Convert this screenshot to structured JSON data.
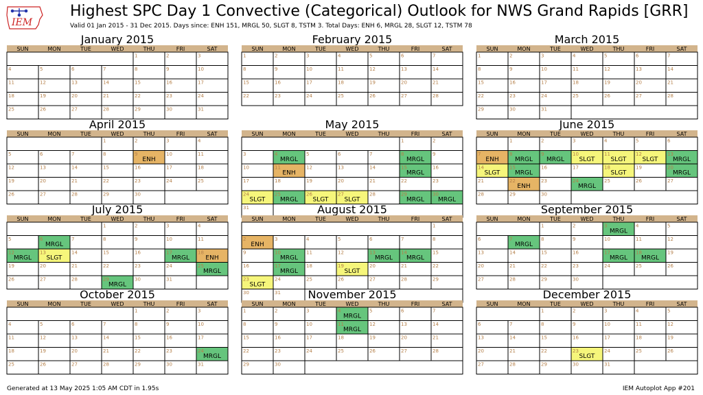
{
  "header": {
    "title": "Highest SPC Day 1 Convective (Categorical) Outlook for NWS Grand Rapids [GRR]",
    "subtitle": "Valid 01 Jan 2015 - 31 Dec 2015. Days since: ENH 151, MRGL 50, SLGT 8, TSTM 3. Total Days: ENH 6, MRGL 28, SLGT 12, TSTM 78",
    "logo_text": "IEM"
  },
  "footer": {
    "generated": "Generated at 13 May 2025 1:05 AM CDT in 1.95s",
    "app": "IEM Autoplot App #201"
  },
  "colors": {
    "header": "#d2b48c",
    "MRGL": "#66c57d",
    "SLGT": "#f6f67b",
    "ENH": "#e6b465",
    "day_number": "#b5804a",
    "logo": "#cc2222"
  },
  "chart_data": {
    "type": "table",
    "year": 2015,
    "weekday_labels": [
      "SUN",
      "MON",
      "TUE",
      "WED",
      "THU",
      "FRI",
      "SAT"
    ],
    "months": [
      {
        "name": "January 2015",
        "first_weekday": 4,
        "days": 31,
        "events": {}
      },
      {
        "name": "February 2015",
        "first_weekday": 0,
        "days": 28,
        "events": {}
      },
      {
        "name": "March 2015",
        "first_weekday": 0,
        "days": 31,
        "events": {}
      },
      {
        "name": "April 2015",
        "first_weekday": 3,
        "days": 30,
        "events": {
          "9": "ENH"
        }
      },
      {
        "name": "May 2015",
        "first_weekday": 5,
        "days": 31,
        "events": {
          "4": "MRGL",
          "8": "MRGL",
          "11": "ENH",
          "15": "MRGL",
          "24": "SLGT",
          "25": "MRGL",
          "26": "SLGT",
          "27": "SLGT",
          "29": "MRGL",
          "30": "MRGL"
        }
      },
      {
        "name": "June 2015",
        "first_weekday": 1,
        "days": 30,
        "events": {
          "7": "ENH",
          "8": "MRGL",
          "9": "MRGL",
          "10": "SLGT",
          "11": "SLGT",
          "12": "SLGT",
          "13": "MRGL",
          "14": "SLGT",
          "15": "MRGL",
          "18": "SLGT",
          "20": "MRGL",
          "22": "ENH",
          "24": "MRGL"
        }
      },
      {
        "name": "July 2015",
        "first_weekday": 3,
        "days": 31,
        "events": {
          "6": "MRGL",
          "12": "MRGL",
          "13": "SLGT",
          "17": "MRGL",
          "18": "ENH",
          "25": "MRGL",
          "29": "MRGL"
        }
      },
      {
        "name": "August 2015",
        "first_weekday": 6,
        "days": 31,
        "events": {
          "2": "ENH",
          "10": "MRGL",
          "13": "MRGL",
          "14": "MRGL",
          "17": "MRGL",
          "19": "SLGT",
          "23": "SLGT"
        }
      },
      {
        "name": "September 2015",
        "first_weekday": 2,
        "days": 30,
        "events": {
          "3": "MRGL",
          "7": "MRGL",
          "17": "MRGL",
          "18": "MRGL"
        }
      },
      {
        "name": "October 2015",
        "first_weekday": 4,
        "days": 31,
        "events": {
          "24": "MRGL"
        }
      },
      {
        "name": "November 2015",
        "first_weekday": 0,
        "days": 30,
        "events": {
          "4": "MRGL",
          "11": "MRGL"
        }
      },
      {
        "name": "December 2015",
        "first_weekday": 2,
        "days": 31,
        "events": {
          "23": "SLGT"
        }
      }
    ]
  }
}
